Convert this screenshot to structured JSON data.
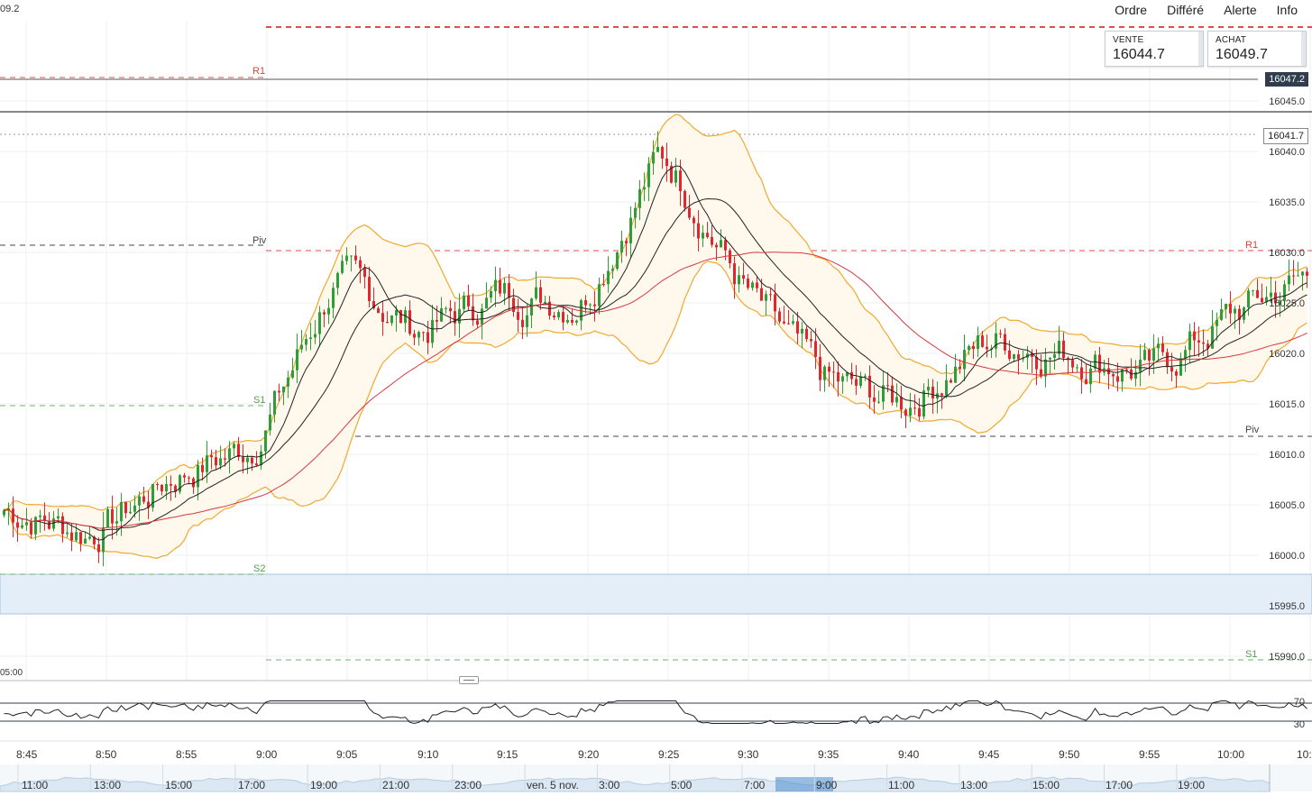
{
  "header": {
    "left_text": "09.2",
    "menu": [
      "Ordre",
      "Différé",
      "Alerte",
      "Info"
    ]
  },
  "quotes": {
    "sell": {
      "label": "VENTE",
      "value": "16044.7"
    },
    "buy": {
      "label": "ACHAT",
      "value": "16049.7"
    }
  },
  "price_axis": {
    "labels": [
      "16045.0",
      "16040.0",
      "16035.0",
      "16030.0",
      "16025.0",
      "16020.0",
      "16015.0",
      "16010.0",
      "16005.0",
      "16000.0",
      "15995.0",
      "15990.0"
    ],
    "current_price": "16047.2",
    "marked_price": "16041.7"
  },
  "pivots": {
    "r1_left": "R1",
    "piv_left": "Piv",
    "s1_left": "S1",
    "s2_left": "S2",
    "r1_right": "R1",
    "piv_right": "Piv",
    "s1_right": "S1"
  },
  "rsi": {
    "upper": "70",
    "lower": "30"
  },
  "time_axis": {
    "labels": [
      "8:45",
      "8:50",
      "8:55",
      "9:00",
      "9:05",
      "9:10",
      "9:15",
      "9:20",
      "9:25",
      "9:30",
      "9:35",
      "9:40",
      "9:45",
      "9:50",
      "9:55",
      "10:00",
      "10:"
    ],
    "small_label": "05:00"
  },
  "navigator": {
    "labels": [
      "11:00",
      "13:00",
      "15:00",
      "17:00",
      "19:00",
      "21:00",
      "23:00",
      "ven. 5 nov.",
      "3:00",
      "5:00",
      "7:00",
      "9:00",
      "11:00",
      "13:00",
      "15:00",
      "17:00",
      "19:00"
    ]
  },
  "colors": {
    "up": "#2e9e3a",
    "down": "#e0262f",
    "band": "#f0a92e",
    "band_fill": "#fff8ec",
    "ma_fast": "#222222",
    "ma_slow": "#d9373f",
    "resistance": "#e24c4c",
    "support": "#6ab36a",
    "zone": "#e3eef8"
  },
  "chart_data": {
    "type": "candlestick",
    "instrument_price_range": [
      15988,
      16049
    ],
    "x": [
      "8:45",
      "8:50",
      "8:55",
      "9:00",
      "9:05",
      "9:10",
      "9:15",
      "9:20",
      "9:25",
      "9:30",
      "9:35",
      "9:40",
      "9:45",
      "9:50",
      "9:55",
      "10:00",
      "10:05"
    ],
    "close_path": [
      16004.5,
      16002,
      16008,
      16011,
      16028,
      16022,
      16026,
      16025,
      16040.5,
      16026,
      16017,
      16015,
      16021.5,
      16020,
      16018,
      16024,
      16028
    ],
    "levels": {
      "R1_prev": 16047.2,
      "Piv_prev": 16030.5,
      "S1_prev": 16015,
      "S2_prev": 15998.5,
      "R1": 16030,
      "Piv": 16012,
      "S1": 15990,
      "top_dashed": 16052
    },
    "rsi_levels": [
      70,
      30
    ]
  }
}
